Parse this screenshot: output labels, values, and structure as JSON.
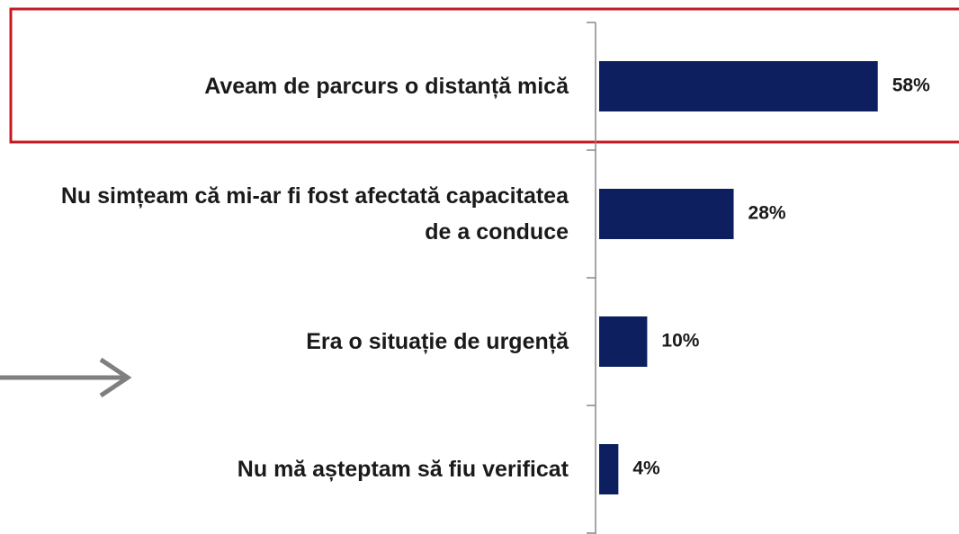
{
  "chart_data": {
    "type": "bar",
    "orientation": "horizontal",
    "categories": [
      "Aveam de parcurs o distanță mică",
      "Nu simțeam că mi-ar fi fost afectată capacitatea de a conduce",
      "Era o situație de urgență",
      "Nu mă așteptam să fiu verificat"
    ],
    "values": [
      58,
      28,
      10,
      4
    ],
    "value_labels": [
      "58%",
      "28%",
      "10%",
      "4%"
    ],
    "color": "#0d1f5f"
  }
}
